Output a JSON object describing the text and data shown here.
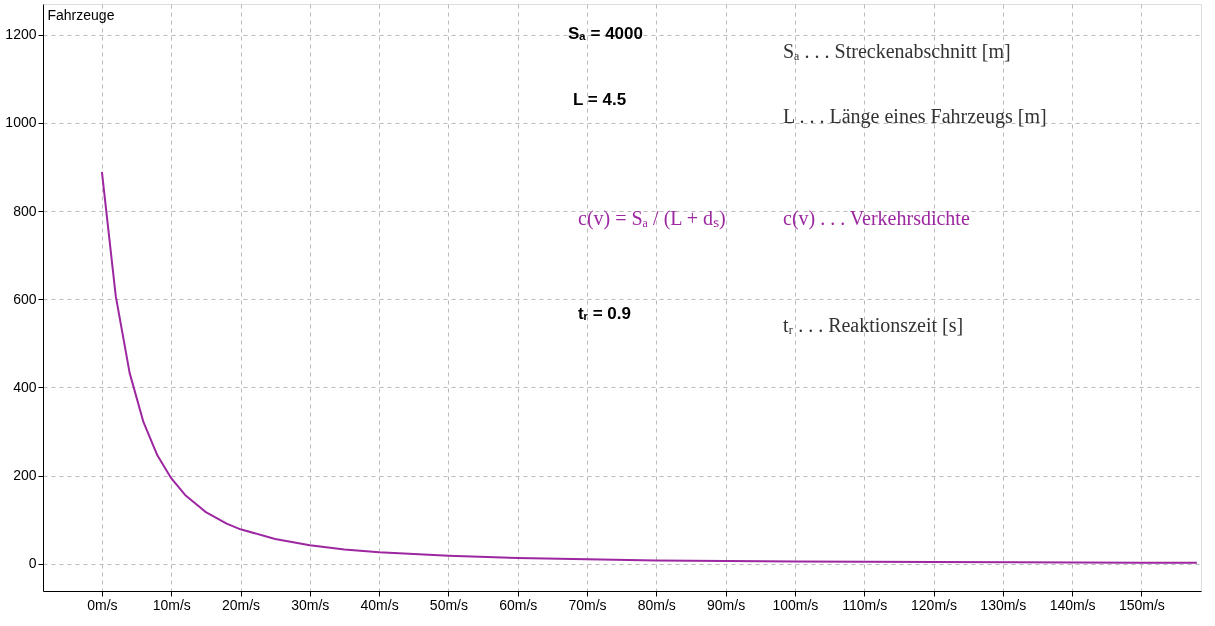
{
  "chart_data": {
    "type": "line",
    "ylabel": "Fahrzeuge",
    "x": [
      0,
      2,
      4,
      6,
      8,
      10,
      12,
      15,
      18,
      20,
      25,
      30,
      35,
      40,
      50,
      60,
      70,
      80,
      90,
      100,
      120,
      150,
      158
    ],
    "series": [
      {
        "color": "#9c27a0",
        "values": [
          889,
          607,
          433,
          321,
          246,
          194,
          156,
          117,
          91,
          78,
          56,
          42,
          32,
          26,
          18,
          13,
          10,
          7,
          6,
          5,
          4,
          2,
          2
        ]
      }
    ],
    "xlim": [
      -8.5,
      158.6
    ],
    "ylim": [
      -62,
      1270
    ],
    "xticks": [
      {
        "value": 0,
        "label": "0m/s"
      },
      {
        "value": 10,
        "label": "10m/s"
      },
      {
        "value": 20,
        "label": "20m/s"
      },
      {
        "value": 30,
        "label": "30m/s"
      },
      {
        "value": 40,
        "label": "40m/s"
      },
      {
        "value": 50,
        "label": "50m/s"
      },
      {
        "value": 60,
        "label": "60m/s"
      },
      {
        "value": 70,
        "label": "70m/s"
      },
      {
        "value": 80,
        "label": "80m/s"
      },
      {
        "value": 90,
        "label": "90m/s"
      },
      {
        "value": 100,
        "label": "100m/s"
      },
      {
        "value": 110,
        "label": "110m/s"
      },
      {
        "value": 120,
        "label": "120m/s"
      },
      {
        "value": 130,
        "label": "130m/s"
      },
      {
        "value": 140,
        "label": "140m/s"
      },
      {
        "value": 150,
        "label": "150m/s"
      }
    ],
    "yticks": [
      0,
      200,
      400,
      600,
      800,
      1000,
      1200
    ],
    "grid": true,
    "line_style": "solid",
    "marker": "none",
    "annotations": [
      "Sₐ = 4000",
      "L = 4.5",
      "c(v) = Sₐ / (L + dₛ)",
      "tᵣ = 0.9",
      "Sₐ . . . Streckenabschnitt [m]",
      "L . . . Länge eines Fahrzeugs [m]",
      "c(v) . . . Verkehrsdichte",
      "tᵣ . . . Reaktionszeit [s]"
    ]
  }
}
